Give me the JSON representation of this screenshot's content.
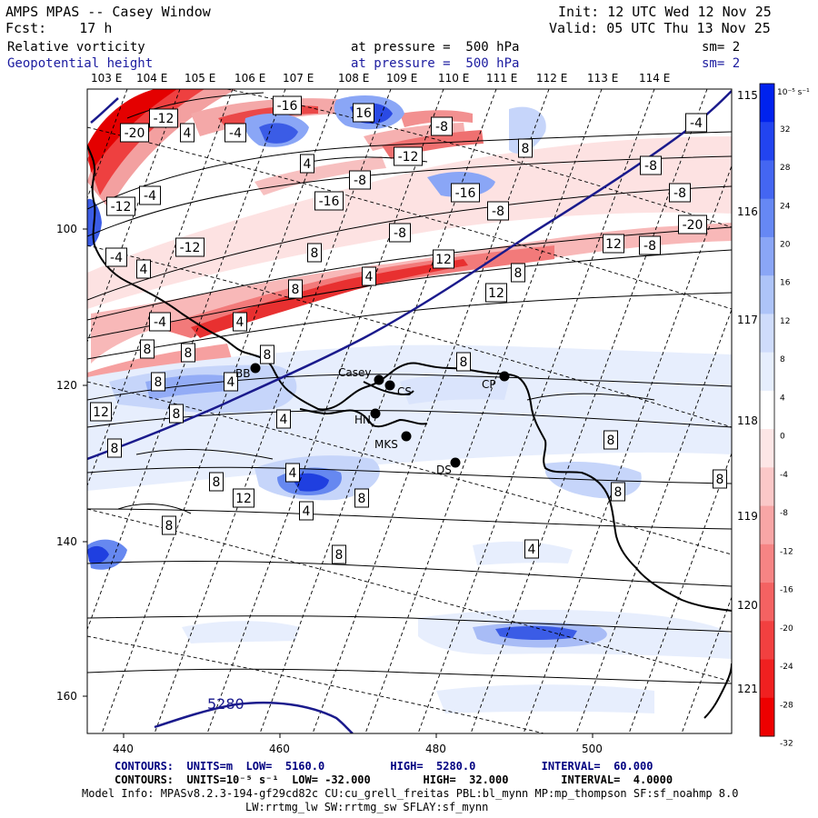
{
  "header": {
    "title": "AMPS MPAS -- Casey Window",
    "init": "Init: 12 UTC Wed 12 Nov 25",
    "fcst": "Fcst:    17 h",
    "valid": "Valid: 05 UTC Thu 13 Nov 25"
  },
  "fields": [
    {
      "name": "Relative vorticity",
      "level": "at pressure =  500 hPa",
      "smooth": "sm= 2",
      "color": "#000000"
    },
    {
      "name": "Geopotential height",
      "level": "at pressure =  500 hPa",
      "smooth": "sm= 2",
      "color": "#1c1ca0"
    }
  ],
  "map": {
    "top_lon_labels": [
      "103 E",
      "104 E",
      "105 E",
      "106 E",
      "107 E",
      "108 E",
      "109 E",
      "110 E",
      "111 E",
      "112 E",
      "113 E",
      "114 E"
    ],
    "right_lon_labels": [
      "115 E",
      "116 E",
      "117 E",
      "118 E",
      "119 E",
      "120 E",
      "121 E"
    ],
    "x_axis_ticks": [
      "440",
      "460",
      "480",
      "500"
    ],
    "y_axis_ticks": [
      "100",
      "120",
      "140",
      "160"
    ],
    "stations": [
      {
        "label": "Casey"
      },
      {
        "label": "CS"
      },
      {
        "label": "CP"
      },
      {
        "label": "BB"
      },
      {
        "label": "HN"
      },
      {
        "label": "MKS"
      },
      {
        "label": "DS"
      }
    ],
    "height_label": "5280",
    "vorticity_labels": [
      "-20",
      "-12",
      "-16",
      "16",
      "-8",
      "8",
      "-12",
      "4",
      "-4",
      "4",
      "-8",
      "-4",
      "-8",
      "-8",
      "-4",
      "-16",
      "-16",
      "-8",
      "-12",
      "-20",
      "-12",
      "-4",
      "-8",
      "12",
      "-8",
      "8",
      "4",
      "4",
      "12",
      "8",
      "8",
      "12",
      "-4",
      "4",
      "8",
      "8",
      "8",
      "8",
      "8",
      "4",
      "12",
      "8",
      "4",
      "8",
      "8",
      "4",
      "8",
      "12",
      "8",
      "8",
      "4",
      "8",
      "8",
      "8",
      "4"
    ]
  },
  "colorbar": {
    "unit": "10⁻⁵ s⁻¹",
    "ticks": [
      "32",
      "28",
      "24",
      "20",
      "16",
      "12",
      "8",
      "4",
      "0",
      "-4",
      "-8",
      "-12",
      "-16",
      "-20",
      "-24",
      "-28",
      "-32"
    ],
    "colors": [
      "#0022ee",
      "#2244f0",
      "#4466f2",
      "#6688f4",
      "#8aa6f6",
      "#aec4f8",
      "#cfdcfb",
      "#e6eefd",
      "#ffffff",
      "#fde6e6",
      "#fbc8c8",
      "#f8a6a6",
      "#f68484",
      "#f46262",
      "#f24040",
      "#f02020",
      "#ee0000"
    ]
  },
  "footer": {
    "line1_label": "CONTOURS:  UNITS=m  LOW=  5160.0          HIGH=  5280.0          INTERVAL=  60.000",
    "line2_label": "CONTOURS:  UNITS=10⁻⁵ s⁻¹  LOW= -32.000        HIGH=  32.000        INTERVAL=  4.0000",
    "model_info": "Model Info: MPASv8.2.3-194-gf29cd82c CU:cu_grell_freitas PBL:bl_mynn MP:mp_thompson SF:sf_noahmp 8.0",
    "model_info2": "LW:rrtmg_lw SW:rrtmg_sw SFLAY:sf_mynn"
  }
}
